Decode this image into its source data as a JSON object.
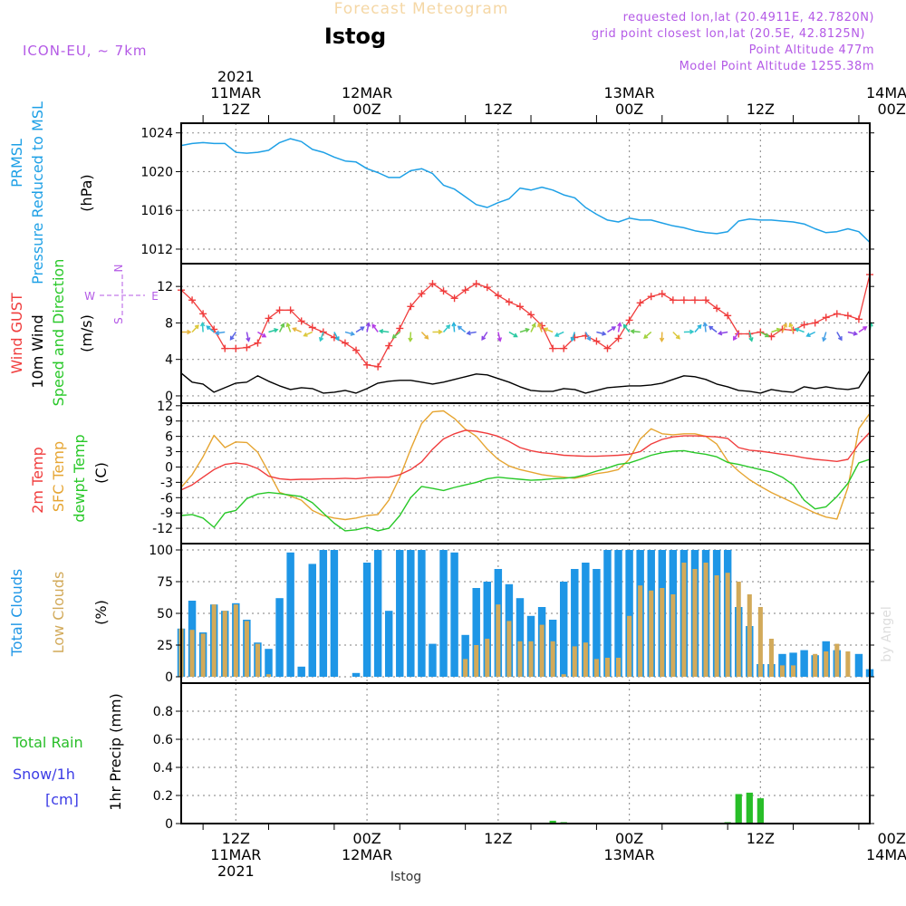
{
  "header": {
    "title": "Forecast Meteogram",
    "station": "Istog",
    "model": "ICON-EU, ~ 7km",
    "requested": "requested lon,lat (20.4911E, 42.7820N)",
    "grid_point": "grid point closest lon,lat (20.5E, 42.8125N)",
    "point_altitude": "Point Altitude 477m",
    "model_altitude": "Model Point Altitude 1255.38m",
    "footer_station": "Istog",
    "credit": "by Angel"
  },
  "colors": {
    "pressure": "#1EA0E6",
    "gust": "#F03C3C",
    "wind": "#000000",
    "t2m": "#F03C3C",
    "sfc": "#E6A532",
    "dew": "#28C828",
    "total_clouds": "#1E96E6",
    "low_clouds": "#D2AA5A",
    "rain": "#28BE28",
    "snow": "#3C3CE6",
    "purple": "#B45AE6"
  },
  "time_axis": {
    "top_labels": [
      {
        "id": "t0",
        "lines": [
          "2021",
          "11MAR",
          "12Z"
        ]
      },
      {
        "id": "t1",
        "lines": [
          "12MAR",
          "00Z"
        ]
      },
      {
        "id": "t2",
        "lines": [
          "12Z"
        ]
      },
      {
        "id": "t3",
        "lines": [
          "13MAR",
          "00Z"
        ]
      },
      {
        "id": "t4",
        "lines": [
          "12Z"
        ]
      },
      {
        "id": "t5",
        "lines": [
          "14MAR",
          "00Z"
        ]
      }
    ],
    "bottom_labels": [
      {
        "id": "b0",
        "lines": [
          "12Z",
          "11MAR",
          "2021"
        ]
      },
      {
        "id": "b1",
        "lines": [
          "00Z",
          "12MAR"
        ]
      },
      {
        "id": "b2",
        "lines": [
          "12Z"
        ]
      },
      {
        "id": "b3",
        "lines": [
          "00Z",
          "13MAR"
        ]
      },
      {
        "id": "b4",
        "lines": [
          "12Z"
        ]
      },
      {
        "id": "b5",
        "lines": [
          "00Z",
          "14MAR"
        ]
      }
    ],
    "start_hour_offset": -5,
    "end_hour_offset": 58
  },
  "chart_data": [
    {
      "id": "pressure",
      "type": "line",
      "title": "PRMSL Pressure Reduced to MSL",
      "ylabel": "(hPa)",
      "label_lines": [
        "PRMSL",
        "Pressure Reduced to MSL"
      ],
      "unit": "(hPa)",
      "ylim": [
        1010.5,
        1025
      ],
      "yticks": [
        1012,
        1016,
        1020,
        1024
      ],
      "x": [
        -5,
        -4,
        -3,
        -2,
        -1,
        0,
        1,
        2,
        3,
        4,
        5,
        6,
        7,
        8,
        9,
        10,
        11,
        12,
        13,
        14,
        15,
        16,
        17,
        18,
        19,
        20,
        21,
        22,
        23,
        24,
        25,
        26,
        27,
        28,
        29,
        30,
        31,
        32,
        33,
        34,
        35,
        36,
        37,
        38,
        39,
        40,
        41,
        42,
        43,
        44,
        45,
        46,
        47,
        48,
        49,
        50,
        51,
        52,
        53,
        54,
        55,
        56,
        57,
        58
      ],
      "series": [
        {
          "name": "PRMSL",
          "values": [
            1022.7,
            1022.9,
            1023.0,
            1022.9,
            1022.9,
            1022.0,
            1021.9,
            1022.0,
            1022.2,
            1023.0,
            1023.4,
            1023.1,
            1022.3,
            1022.0,
            1021.5,
            1021.1,
            1021.0,
            1020.3,
            1019.9,
            1019.4,
            1019.4,
            1020.1,
            1020.3,
            1019.8,
            1018.6,
            1018.2,
            1017.4,
            1016.6,
            1016.3,
            1016.8,
            1017.2,
            1018.3,
            1018.1,
            1018.4,
            1018.1,
            1017.6,
            1017.3,
            1016.3,
            1015.6,
            1015.0,
            1014.8,
            1015.2,
            1015.0,
            1015.0,
            1014.7,
            1014.4,
            1014.2,
            1013.9,
            1013.7,
            1013.6,
            1013.8,
            1014.9,
            1015.1,
            1015.0,
            1015.0,
            1014.9,
            1014.8,
            1014.6,
            1014.1,
            1013.7,
            1013.8,
            1014.1,
            1013.8,
            1012.7
          ]
        }
      ]
    },
    {
      "id": "wind",
      "type": "line",
      "title": "Wind GUST / 10m Wind Speed and Direction",
      "ylabel": "(m/s)",
      "label_lines": [
        "Wind GUST",
        "10m Wind",
        "Speed and Direction"
      ],
      "unit": "(m/s)",
      "compass": {
        "n": "N",
        "s": "S",
        "w": "W",
        "e": "E"
      },
      "ylim": [
        -0.8,
        14.5
      ],
      "yticks": [
        0,
        4,
        8,
        12
      ],
      "x": [
        -5,
        -4,
        -3,
        -2,
        -1,
        0,
        1,
        2,
        3,
        4,
        5,
        6,
        7,
        8,
        9,
        10,
        11,
        12,
        13,
        14,
        15,
        16,
        17,
        18,
        19,
        20,
        21,
        22,
        23,
        24,
        25,
        26,
        27,
        28,
        29,
        30,
        31,
        32,
        33,
        34,
        35,
        36,
        37,
        38,
        39,
        40,
        41,
        42,
        43,
        44,
        45,
        46,
        47,
        48,
        49,
        50,
        51,
        52,
        53,
        54,
        55,
        56,
        57,
        58
      ],
      "series": [
        {
          "name": "Wind GUST",
          "values": [
            11.6,
            10.5,
            9.0,
            7.3,
            5.2,
            5.2,
            5.3,
            5.8,
            8.5,
            9.4,
            9.4,
            8.2,
            7.5,
            7.0,
            6.4,
            5.8,
            5.0,
            3.4,
            3.2,
            5.5,
            7.4,
            9.8,
            11.2,
            12.3,
            11.5,
            10.7,
            11.6,
            12.3,
            11.9,
            11.0,
            10.3,
            9.8,
            8.9,
            7.7,
            5.2,
            5.2,
            6.4,
            6.6,
            6.0,
            5.2,
            6.3,
            8.3,
            10.2,
            10.9,
            11.2,
            10.5,
            10.5,
            10.5,
            10.5,
            9.6,
            8.8,
            6.8,
            6.8,
            7.0,
            6.5,
            7.3,
            7.2,
            7.8,
            8.0,
            8.6,
            9.0,
            8.8,
            8.4,
            13.3
          ]
        },
        {
          "name": "10m Wind",
          "values": [
            2.5,
            1.5,
            1.3,
            0.4,
            0.9,
            1.4,
            1.5,
            2.2,
            1.6,
            1.1,
            0.7,
            0.9,
            0.8,
            0.3,
            0.4,
            0.6,
            0.3,
            0.8,
            1.4,
            1.6,
            1.7,
            1.7,
            1.5,
            1.3,
            1.5,
            1.8,
            2.1,
            2.4,
            2.3,
            1.9,
            1.5,
            1.0,
            0.6,
            0.5,
            0.5,
            0.8,
            0.7,
            0.3,
            0.6,
            0.9,
            1.0,
            1.1,
            1.1,
            1.2,
            1.4,
            1.8,
            2.2,
            2.1,
            1.8,
            1.3,
            1.0,
            0.6,
            0.5,
            0.3,
            0.7,
            0.5,
            0.4,
            1.0,
            0.8,
            1.0,
            0.8,
            0.7,
            0.9,
            2.8
          ]
        }
      ]
    },
    {
      "id": "temperature",
      "type": "line",
      "title": "2m Temp / SFC Temp / dewpt Temp",
      "ylabel": "(C)",
      "label_lines": [
        "2m Temp",
        "SFC Temp",
        "dewpt Temp"
      ],
      "unit": "(C)",
      "ylim": [
        -15,
        12.5
      ],
      "yticks": [
        -12,
        -9,
        -6,
        -3,
        0,
        3,
        6,
        9,
        12
      ],
      "x": [
        -5,
        -4,
        -3,
        -2,
        -1,
        0,
        1,
        2,
        3,
        4,
        5,
        6,
        7,
        8,
        9,
        10,
        11,
        12,
        13,
        14,
        15,
        16,
        17,
        18,
        19,
        20,
        21,
        22,
        23,
        24,
        25,
        26,
        27,
        28,
        29,
        30,
        31,
        32,
        33,
        34,
        35,
        36,
        37,
        38,
        39,
        40,
        41,
        42,
        43,
        44,
        45,
        46,
        47,
        48,
        49,
        50,
        51,
        52,
        53,
        54,
        55,
        56,
        57,
        58
      ],
      "series": [
        {
          "name": "2m Temp",
          "values": [
            -4.5,
            -3.5,
            -2.0,
            -0.5,
            0.5,
            0.8,
            0.5,
            -0.3,
            -1.8,
            -2.3,
            -2.5,
            -2.4,
            -2.4,
            -2.3,
            -2.3,
            -2.2,
            -2.3,
            -2.1,
            -2.0,
            -2.0,
            -1.5,
            -0.5,
            1.0,
            3.5,
            5.5,
            6.5,
            7.2,
            7.0,
            6.6,
            6.0,
            5.0,
            3.8,
            3.2,
            2.8,
            2.6,
            2.3,
            2.2,
            2.1,
            2.1,
            2.2,
            2.3,
            2.5,
            3.0,
            4.5,
            5.4,
            5.9,
            6.1,
            6.1,
            6.0,
            5.9,
            5.6,
            3.8,
            3.3,
            3.1,
            2.8,
            2.5,
            2.2,
            1.8,
            1.5,
            1.3,
            1.1,
            1.5,
            4.5,
            6.8
          ]
        },
        {
          "name": "SFC Temp",
          "values": [
            -4.0,
            -1.5,
            2.0,
            6.2,
            3.8,
            4.9,
            4.8,
            2.9,
            -1.0,
            -5.0,
            -5.7,
            -6.5,
            -8.5,
            -9.5,
            -10.0,
            -10.3,
            -10.0,
            -9.5,
            -9.3,
            -6.5,
            -2.0,
            3.5,
            8.5,
            10.8,
            11.0,
            9.5,
            7.4,
            6.0,
            3.5,
            1.5,
            0.2,
            -0.5,
            -1.0,
            -1.5,
            -1.8,
            -2.0,
            -2.2,
            -1.8,
            -1.3,
            -1.0,
            -0.5,
            1.5,
            5.5,
            7.5,
            6.5,
            6.3,
            6.5,
            6.5,
            6.0,
            4.5,
            1.2,
            -0.8,
            -2.5,
            -3.8,
            -5.0,
            -6.0,
            -7.0,
            -8.0,
            -9.0,
            -9.8,
            -10.2,
            -4.0,
            7.5,
            10.5
          ]
        },
        {
          "name": "dewpt Temp",
          "values": [
            -9.5,
            -9.3,
            -10.0,
            -11.8,
            -9.0,
            -8.5,
            -6.2,
            -5.3,
            -5.0,
            -5.2,
            -5.5,
            -5.8,
            -7.0,
            -9.0,
            -11.0,
            -12.5,
            -12.3,
            -11.8,
            -12.5,
            -12.0,
            -9.5,
            -6.0,
            -3.8,
            -4.2,
            -4.6,
            -4.0,
            -3.5,
            -3.0,
            -2.3,
            -2.0,
            -2.2,
            -2.4,
            -2.6,
            -2.5,
            -2.3,
            -2.2,
            -2.0,
            -1.5,
            -0.8,
            -0.2,
            0.5,
            0.8,
            1.5,
            2.3,
            2.8,
            3.1,
            3.2,
            2.8,
            2.5,
            2.0,
            0.9,
            0.5,
            0.0,
            -0.5,
            -1.0,
            -2.0,
            -3.5,
            -6.5,
            -8.2,
            -7.8,
            -5.8,
            -3.2,
            0.8,
            1.5
          ]
        }
      ]
    },
    {
      "id": "clouds",
      "type": "bar",
      "title": "Total Clouds / Low Clouds",
      "ylabel": "(%)",
      "label_lines": [
        "Total Clouds",
        "Low Clouds"
      ],
      "unit": "(%)",
      "ylim": [
        -5,
        105
      ],
      "yticks": [
        0,
        25,
        50,
        75,
        100
      ],
      "x": [
        -5,
        -4,
        -3,
        -2,
        -1,
        0,
        1,
        2,
        3,
        4,
        5,
        6,
        7,
        8,
        9,
        10,
        11,
        12,
        13,
        14,
        15,
        16,
        17,
        18,
        19,
        20,
        21,
        22,
        23,
        24,
        25,
        26,
        27,
        28,
        29,
        30,
        31,
        32,
        33,
        34,
        35,
        36,
        37,
        38,
        39,
        40,
        41,
        42,
        43,
        44,
        45,
        46,
        47,
        48,
        49,
        50,
        51,
        52,
        53,
        54,
        55,
        56,
        57,
        58
      ],
      "series": [
        {
          "name": "Total Clouds",
          "values": [
            38,
            60,
            35,
            57,
            52,
            58,
            45,
            27,
            22,
            62,
            98,
            8,
            89,
            100,
            100,
            0,
            3,
            90,
            100,
            52,
            100,
            100,
            100,
            26,
            100,
            98,
            33,
            70,
            75,
            85,
            73,
            62,
            48,
            55,
            45,
            75,
            85,
            90,
            85,
            100,
            100,
            100,
            100,
            100,
            100,
            100,
            100,
            100,
            100,
            100,
            100,
            55,
            40,
            10,
            10,
            18,
            19,
            21,
            17,
            28,
            21,
            0,
            18,
            6
          ]
        },
        {
          "name": "Low Clouds",
          "values": [
            38,
            37,
            34,
            57,
            52,
            57,
            44,
            26,
            2,
            0,
            0,
            0,
            0,
            0,
            0,
            0,
            0,
            0,
            0,
            0,
            0,
            0,
            0,
            0,
            0,
            0,
            14,
            25,
            30,
            57,
            44,
            28,
            28,
            41,
            28,
            2,
            24,
            27,
            14,
            15,
            15,
            48,
            72,
            68,
            70,
            65,
            90,
            85,
            90,
            80,
            82,
            75,
            65,
            55,
            30,
            9,
            9,
            0,
            18,
            20,
            26,
            20,
            0,
            0
          ]
        }
      ]
    },
    {
      "id": "precip",
      "type": "bar",
      "title": "1hr Precip (mm)",
      "ylabel": "1hr Precip (mm)",
      "label_lines": [
        "Total  Rain",
        "Snow/1h",
        "[cm]"
      ],
      "ylim": [
        0,
        1.0
      ],
      "yticks": [
        0,
        0.2,
        0.4,
        0.6,
        0.8
      ],
      "x": [
        29,
        30,
        45,
        46,
        47,
        48
      ],
      "series": [
        {
          "name": "Total Rain",
          "values": [
            0.02,
            0.01,
            0.01,
            0.21,
            0.22,
            0.18
          ]
        },
        {
          "name": "Snow/1h",
          "values": [
            0,
            0,
            0,
            0,
            0,
            0
          ]
        }
      ]
    }
  ]
}
